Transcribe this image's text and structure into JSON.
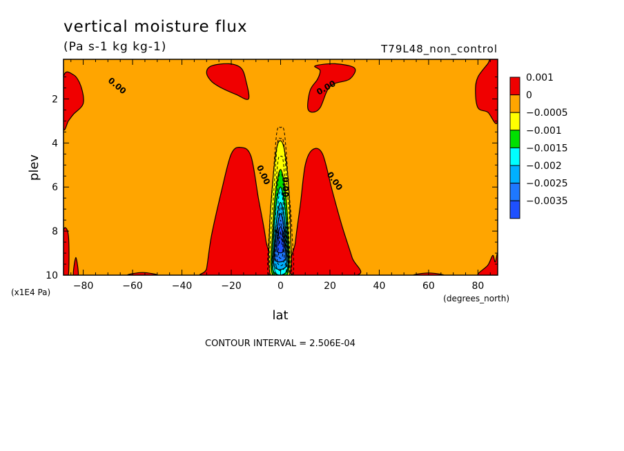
{
  "chart_data": {
    "type": "heatmap",
    "title": "vertical moisture flux",
    "subtitle": "(Pa s-1 kg kg-1)",
    "run_label": "T79L48_non_control",
    "xlabel": "lat",
    "xunits": "(degrees_north)",
    "ylabel": "plev",
    "yunits": "(x1E4 Pa)",
    "xlim": [
      -88,
      88
    ],
    "ylim": [
      0.2,
      10
    ],
    "y_inverted": true,
    "x_ticks": [
      -80,
      -60,
      -40,
      -20,
      0,
      20,
      40,
      60,
      80
    ],
    "y_ticks": [
      2,
      4,
      6,
      8,
      10
    ],
    "contour_interval_text": "CONTOUR INTERVAL = 2.506E-04",
    "contour_line_label": "0.00",
    "colorbar": {
      "labels": [
        "0.001",
        "0",
        "−0.0005",
        "−0.001",
        "−0.0015",
        "−0.002",
        "−0.0025",
        "−0.0035"
      ],
      "colors": [
        "#f00000",
        "#ffa500",
        "#ffff00",
        "#00e000",
        "#00ffff",
        "#00b0ff",
        "#1e78ff",
        "#1e50ff"
      ]
    },
    "background_level_color": "#ffa500",
    "regions": [
      {
        "level": "0.001",
        "color": "#f00000",
        "outline": [
          [
            -88,
            1.0
          ],
          [
            -84,
            0.9
          ],
          [
            -81,
            1.4
          ],
          [
            -80,
            2.2
          ],
          [
            -84,
            2.7
          ],
          [
            -86,
            3.0
          ],
          [
            -88,
            3.3
          ]
        ]
      },
      {
        "level": "0.001",
        "color": "#f00000",
        "outline": [
          [
            -28,
            0.5
          ],
          [
            -21,
            0.4
          ],
          [
            -16,
            0.6
          ],
          [
            -14,
            1.2
          ],
          [
            -13,
            2.0
          ],
          [
            -18,
            1.8
          ],
          [
            -24,
            1.5
          ],
          [
            -28,
            1.2
          ],
          [
            -30,
            0.8
          ]
        ]
      },
      {
        "level": "0.001",
        "color": "#f00000",
        "outline": [
          [
            14,
            0.5
          ],
          [
            22,
            0.4
          ],
          [
            30,
            0.6
          ],
          [
            28,
            1.1
          ],
          [
            22,
            1.3
          ],
          [
            19,
            1.6
          ],
          [
            16,
            2.4
          ],
          [
            13,
            2.6
          ],
          [
            11,
            2.4
          ],
          [
            12,
            1.6
          ],
          [
            15,
            1.1
          ],
          [
            16,
            0.7
          ]
        ]
      },
      {
        "level": "0.001",
        "color": "#f00000",
        "outline": [
          [
            85,
            0.2
          ],
          [
            88,
            0.2
          ],
          [
            88,
            3.0
          ],
          [
            84,
            2.6
          ],
          [
            80,
            2.4
          ],
          [
            79,
            1.6
          ],
          [
            80,
            1.0
          ],
          [
            84,
            0.4
          ]
        ]
      },
      {
        "level": "0.001",
        "color": "#f00000",
        "outline": [
          [
            -30,
            9.7
          ],
          [
            -28,
            8.2
          ],
          [
            -24,
            6.2
          ],
          [
            -20,
            4.5
          ],
          [
            -16,
            4.2
          ],
          [
            -12,
            4.6
          ],
          [
            -9,
            6.5
          ],
          [
            -6,
            8.4
          ],
          [
            -5,
            10
          ],
          [
            -31,
            10
          ]
        ]
      },
      {
        "level": "0.001",
        "color": "#f00000",
        "outline": [
          [
            5,
            10
          ],
          [
            6,
            8.5
          ],
          [
            8,
            6.8
          ],
          [
            10,
            5.0
          ],
          [
            13,
            4.3
          ],
          [
            17,
            4.5
          ],
          [
            21,
            6.2
          ],
          [
            25,
            7.8
          ],
          [
            29,
            9.2
          ],
          [
            31,
            10
          ]
        ]
      },
      {
        "level": "0.001",
        "color": "#f00000",
        "outline": [
          [
            -88,
            8.0
          ],
          [
            -86,
            8.2
          ],
          [
            -86,
            10
          ],
          [
            -88,
            10
          ]
        ]
      },
      {
        "level": "0.001",
        "color": "#f00000",
        "outline": [
          [
            -84,
            10
          ],
          [
            -83,
            9.2
          ],
          [
            -82,
            10
          ]
        ]
      },
      {
        "level": "0.001",
        "color": "#f00000",
        "outline": [
          [
            -62,
            10
          ],
          [
            -56,
            9.88
          ],
          [
            -50,
            10
          ]
        ]
      },
      {
        "level": "0.001",
        "color": "#f00000",
        "outline": [
          [
            54,
            10
          ],
          [
            60,
            9.9
          ],
          [
            66,
            10
          ]
        ]
      },
      {
        "level": "0.001",
        "color": "#f00000",
        "outline": [
          [
            80,
            10
          ],
          [
            84,
            9.55
          ],
          [
            86,
            9.1
          ],
          [
            87,
            9.4
          ],
          [
            88,
            9.0
          ],
          [
            88,
            10
          ]
        ]
      },
      {
        "level": "-0.0005",
        "color": "#ffff00",
        "outline": [
          [
            -4,
            10
          ],
          [
            -4.5,
            8.0
          ],
          [
            -3,
            5.5
          ],
          [
            -1.5,
            4.2
          ],
          [
            0,
            3.9
          ],
          [
            1.5,
            4.3
          ],
          [
            3,
            5.6
          ],
          [
            4,
            8.0
          ],
          [
            3.5,
            10
          ]
        ]
      },
      {
        "level": "-0.001",
        "color": "#00e000",
        "outline": [
          [
            -3.5,
            9.9
          ],
          [
            -3.2,
            8.0
          ],
          [
            -2,
            6.2
          ],
          [
            0,
            5.2
          ],
          [
            2,
            6.3
          ],
          [
            3,
            8.0
          ],
          [
            3,
            9.9
          ]
        ]
      },
      {
        "level": "-0.0015",
        "color": "#00ffff",
        "outline": [
          [
            -3,
            9.8
          ],
          [
            -2.8,
            8.2
          ],
          [
            -1.8,
            6.8
          ],
          [
            0,
            6.0
          ],
          [
            1.8,
            7.0
          ],
          [
            2.6,
            8.3
          ],
          [
            2.6,
            9.8
          ]
        ]
      },
      {
        "level": "-0.002",
        "color": "#00b0ff",
        "outline": [
          [
            -2.6,
            9.6
          ],
          [
            -2.4,
            8.4
          ],
          [
            -1.4,
            7.3
          ],
          [
            0,
            6.7
          ],
          [
            1.5,
            7.4
          ],
          [
            2.2,
            8.5
          ],
          [
            2.2,
            9.6
          ]
        ]
      },
      {
        "level": "-0.0025",
        "color": "#1e78ff",
        "outline": [
          [
            -2.2,
            9.3
          ],
          [
            -2.0,
            8.4
          ],
          [
            -1.0,
            7.6
          ],
          [
            0,
            7.2
          ],
          [
            1.2,
            7.7
          ],
          [
            1.8,
            8.6
          ],
          [
            1.8,
            9.3
          ]
        ]
      },
      {
        "level": "-0.0035",
        "color": "#1e50ff",
        "outline": [
          [
            -1.4,
            8.9
          ],
          [
            -1.2,
            8.2
          ],
          [
            0,
            7.8
          ],
          [
            1.0,
            8.2
          ],
          [
            1.2,
            8.9
          ]
        ]
      }
    ],
    "contour_labels": [
      {
        "x": -67,
        "y": 1.5,
        "angle": 40
      },
      {
        "x": 19,
        "y": 1.6,
        "angle": -30
      },
      {
        "x": -8,
        "y": 5.5,
        "angle": 65
      },
      {
        "x": 21,
        "y": 5.8,
        "angle": 55
      },
      {
        "x": 0.8,
        "y": 6.0,
        "angle": 90
      }
    ]
  }
}
